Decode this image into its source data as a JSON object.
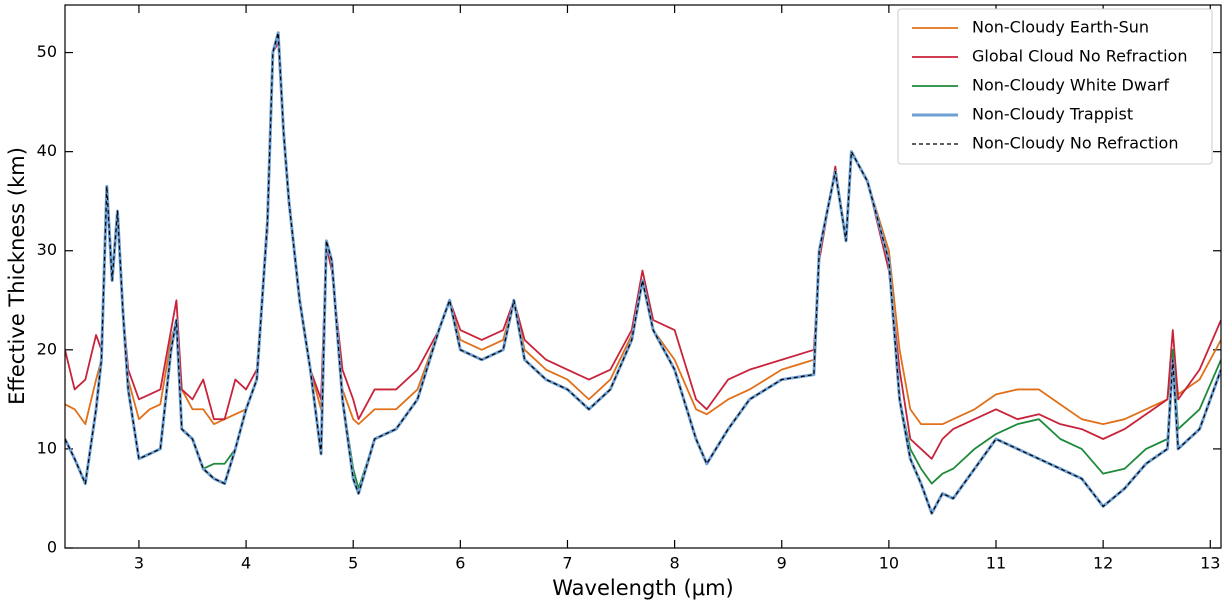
{
  "chart_data": {
    "type": "line",
    "xlabel": "Wavelength (μm)",
    "ylabel": "Effective Thickness (km)",
    "x": [
      2.31,
      2.4,
      2.5,
      2.6,
      2.65,
      2.7,
      2.75,
      2.8,
      2.85,
      2.9,
      3.0,
      3.1,
      3.2,
      3.3,
      3.35,
      3.4,
      3.5,
      3.6,
      3.7,
      3.8,
      3.9,
      4.0,
      4.1,
      4.2,
      4.25,
      4.3,
      4.35,
      4.4,
      4.5,
      4.6,
      4.7,
      4.75,
      4.8,
      4.9,
      5.0,
      5.05,
      5.2,
      5.4,
      5.6,
      5.8,
      5.9,
      6.0,
      6.2,
      6.4,
      6.5,
      6.6,
      6.8,
      7.0,
      7.2,
      7.4,
      7.6,
      7.7,
      7.8,
      8.0,
      8.2,
      8.3,
      8.5,
      8.7,
      9.0,
      9.3,
      9.35,
      9.5,
      9.6,
      9.65,
      9.8,
      10.0,
      10.1,
      10.2,
      10.3,
      10.4,
      10.5,
      10.6,
      10.8,
      11.0,
      11.2,
      11.4,
      11.6,
      11.8,
      12.0,
      12.2,
      12.4,
      12.6,
      12.65,
      12.7,
      12.9,
      13.1
    ],
    "series": [
      {
        "name": "Non-Cloudy Earth-Sun",
        "color": "#e0701a",
        "linewidth": 1.8,
        "values": [
          14.5,
          14,
          12.5,
          17,
          19,
          36,
          27,
          34,
          24,
          17,
          13,
          14,
          14.5,
          21,
          23,
          16,
          14,
          14,
          12.5,
          13,
          13.5,
          14,
          17,
          33,
          50,
          51.5,
          42,
          35,
          25,
          18,
          14,
          31,
          29,
          16,
          13,
          12.5,
          14,
          14,
          16,
          22,
          25,
          21,
          20,
          21,
          25,
          20,
          18,
          17,
          15,
          17,
          21.5,
          27,
          22,
          19,
          14,
          13.5,
          15,
          16,
          18,
          19,
          30,
          38,
          31,
          40,
          37,
          30,
          20,
          14,
          12.5,
          12.5,
          12.5,
          13,
          14,
          15.5,
          16,
          16,
          14.5,
          13,
          12.5,
          13,
          14,
          15,
          20,
          15.5,
          17,
          21
        ]
      },
      {
        "name": "Global Cloud No Refraction",
        "color": "#c8233a",
        "linewidth": 1.8,
        "values": [
          20,
          16,
          17,
          21.5,
          20,
          36,
          27,
          34,
          24,
          18,
          15,
          15.5,
          16,
          22,
          25,
          16,
          15,
          17,
          13,
          13,
          17,
          16,
          18,
          32,
          50,
          51,
          42,
          35,
          25,
          18,
          15,
          30.5,
          28,
          18,
          15,
          13,
          16,
          16,
          18,
          22,
          25,
          22,
          21,
          22,
          25,
          21,
          19,
          18,
          17,
          18,
          22,
          28,
          23,
          22,
          15,
          14,
          17,
          18,
          19,
          20,
          29,
          38.5,
          31,
          40,
          37,
          28,
          18,
          11,
          10,
          9,
          11,
          12,
          13,
          14,
          13,
          13.5,
          12.5,
          12,
          11,
          12,
          13.5,
          15,
          22,
          15,
          18,
          23
        ]
      },
      {
        "name": "Non-Cloudy White Dwarf",
        "color": "#1f8a3a",
        "linewidth": 1.8,
        "values": [
          11,
          9,
          6.5,
          14,
          19,
          36.5,
          27,
          34,
          24,
          16,
          9,
          9.5,
          10,
          20,
          23,
          12,
          11,
          8,
          8.5,
          8.5,
          10,
          14,
          17,
          33,
          50,
          52,
          42,
          35,
          25,
          18,
          9.5,
          31,
          29,
          15,
          8,
          6,
          11,
          12,
          15,
          22,
          25,
          20,
          19,
          20,
          25,
          19,
          17,
          16,
          14,
          16,
          21,
          27,
          22,
          18,
          11,
          8.5,
          12,
          15,
          17,
          17.5,
          30,
          38,
          31,
          40,
          37,
          29,
          15,
          10,
          8,
          6.5,
          7.5,
          8,
          10,
          11.5,
          12.5,
          13,
          11,
          10,
          7.5,
          8,
          10,
          11,
          20,
          12,
          14,
          19
        ]
      },
      {
        "name": "Non-Cloudy Trappist",
        "color": "#6fa0d4",
        "linewidth": 3,
        "values": [
          11,
          9,
          6.5,
          14,
          19,
          36.5,
          27,
          34,
          24,
          16,
          9,
          9.5,
          10,
          20,
          23,
          12,
          11,
          8,
          7,
          6.5,
          10,
          14,
          17,
          33,
          50,
          52,
          42,
          35,
          25,
          18,
          9.5,
          31,
          29,
          15,
          7,
          5.5,
          11,
          12,
          15,
          22,
          25,
          20,
          19,
          20,
          25,
          19,
          17,
          16,
          14,
          16,
          21,
          27,
          22,
          18,
          11,
          8.5,
          12,
          15,
          17,
          17.5,
          30,
          38,
          31,
          40,
          37,
          29,
          15,
          9,
          6.5,
          3.5,
          5.5,
          5,
          8,
          11,
          10,
          9,
          8,
          7,
          4.2,
          6,
          8.5,
          10,
          19,
          10,
          12,
          18
        ]
      },
      {
        "name": "Non-Cloudy No Refraction",
        "color": "#000000",
        "linewidth": 1.2,
        "dashed": true,
        "values": [
          11,
          9,
          6.5,
          14,
          19,
          36.5,
          27,
          34,
          24,
          16,
          9,
          9.5,
          10,
          20,
          23,
          12,
          11,
          8,
          7,
          6.5,
          10,
          14,
          17,
          33,
          50,
          52,
          42,
          35,
          25,
          18,
          9.5,
          31,
          29,
          15,
          7,
          5.5,
          11,
          12,
          15,
          22,
          25,
          20,
          19,
          20,
          25,
          19,
          17,
          16,
          14,
          16,
          21,
          27,
          22,
          18,
          11,
          8.5,
          12,
          15,
          17,
          17.5,
          30,
          38,
          31,
          40,
          37,
          29,
          15,
          9,
          6.5,
          3.5,
          5.5,
          5,
          8,
          11,
          10,
          9,
          8,
          7,
          4.2,
          6,
          8.5,
          10,
          19,
          10,
          12,
          18
        ]
      }
    ],
    "xlim": [
      2.31,
      13.1
    ],
    "xticks": [
      3,
      4,
      5,
      6,
      7,
      8,
      9,
      10,
      11,
      12,
      13
    ],
    "ylim": [
      0,
      54.8
    ],
    "yticks": [
      0,
      10,
      20,
      30,
      40,
      50
    ],
    "legend": "upper right"
  }
}
